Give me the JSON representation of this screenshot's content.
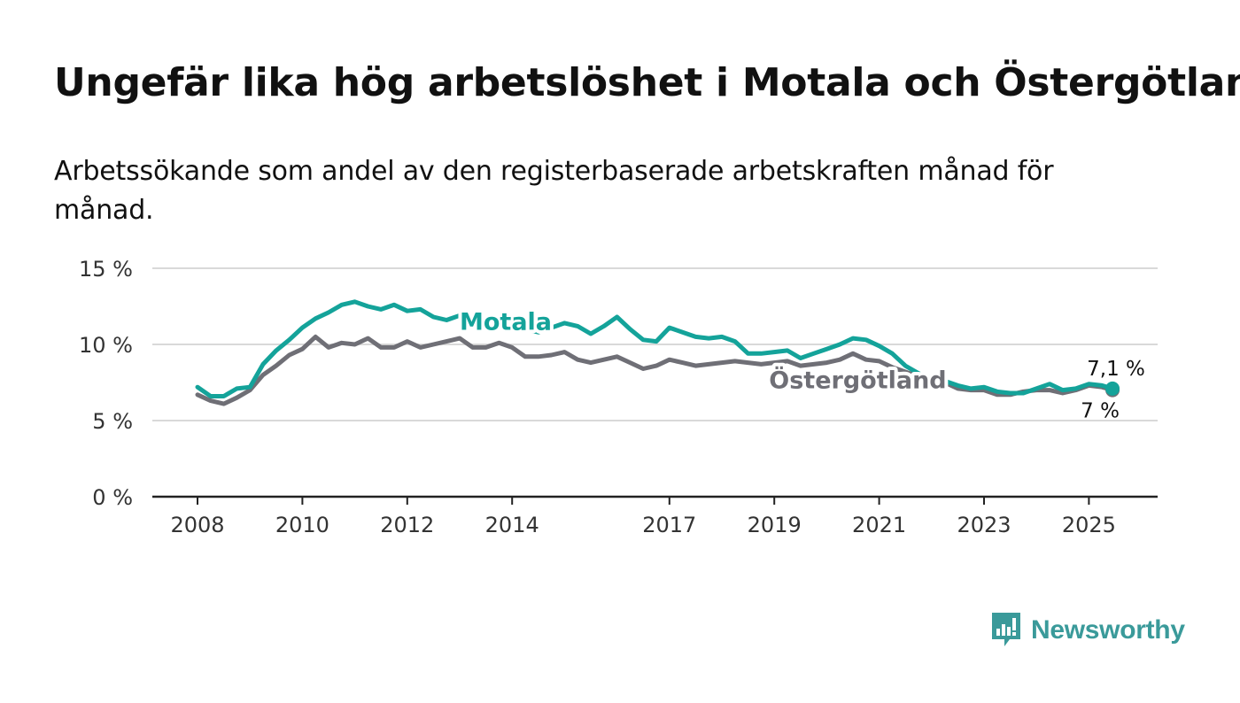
{
  "header": {
    "title": "Ungefär lika hög arbetslöshet i Motala och Östergötland",
    "subtitle": "Arbetssökande som andel av den registerbaserade arbetskraften månad för månad."
  },
  "brand": {
    "name": "Newsworthy",
    "icon": "newsworthy-logo-icon",
    "color": "#3a9a9a"
  },
  "chart_data": {
    "type": "line",
    "title": "Ungefär lika hög arbetslöshet i Motala och Östergötland",
    "subtitle": "Arbetssökande som andel av den registerbaserade arbetskraften månad för månad.",
    "xlabel": "",
    "ylabel": "",
    "xlim": [
      2008,
      2026.3
    ],
    "ylim": [
      0,
      15
    ],
    "x_ticks": [
      2008,
      2010,
      2012,
      2014,
      2017,
      2019,
      2021,
      2023,
      2025
    ],
    "x_tick_labels": [
      "2008",
      "2010",
      "2012",
      "2014",
      "2017",
      "2019",
      "2021",
      "2023",
      "2025"
    ],
    "y_ticks": [
      0,
      5,
      10,
      15
    ],
    "y_tick_labels": [
      "0 %",
      "5 %",
      "10 %",
      "15 %"
    ],
    "grid": "horizontal",
    "legend": "inline labels",
    "series": [
      {
        "name": "Motala",
        "color": "#14a39a",
        "end_label": "7,1 %",
        "points": [
          [
            2008.0,
            7.2
          ],
          [
            2008.25,
            6.6
          ],
          [
            2008.5,
            6.6
          ],
          [
            2008.75,
            7.1
          ],
          [
            2009.0,
            7.2
          ],
          [
            2009.25,
            8.7
          ],
          [
            2009.5,
            9.6
          ],
          [
            2009.75,
            10.3
          ],
          [
            2010.0,
            11.1
          ],
          [
            2010.25,
            11.7
          ],
          [
            2010.5,
            12.1
          ],
          [
            2010.75,
            12.6
          ],
          [
            2011.0,
            12.8
          ],
          [
            2011.25,
            12.5
          ],
          [
            2011.5,
            12.3
          ],
          [
            2011.75,
            12.6
          ],
          [
            2012.0,
            12.2
          ],
          [
            2012.25,
            12.3
          ],
          [
            2012.5,
            11.8
          ],
          [
            2012.75,
            11.6
          ],
          [
            2013.0,
            11.9
          ],
          [
            2013.25,
            11.8
          ],
          [
            2013.5,
            11.5
          ],
          [
            2013.75,
            11.5
          ],
          [
            2014.0,
            11.2
          ],
          [
            2014.25,
            11.0
          ],
          [
            2014.5,
            10.8
          ],
          [
            2014.75,
            11.1
          ],
          [
            2015.0,
            11.4
          ],
          [
            2015.25,
            11.2
          ],
          [
            2015.5,
            10.7
          ],
          [
            2015.75,
            11.2
          ],
          [
            2016.0,
            11.8
          ],
          [
            2016.25,
            11.0
          ],
          [
            2016.5,
            10.3
          ],
          [
            2016.75,
            10.2
          ],
          [
            2017.0,
            11.1
          ],
          [
            2017.25,
            10.8
          ],
          [
            2017.5,
            10.5
          ],
          [
            2017.75,
            10.4
          ],
          [
            2018.0,
            10.5
          ],
          [
            2018.25,
            10.2
          ],
          [
            2018.5,
            9.4
          ],
          [
            2018.75,
            9.4
          ],
          [
            2019.0,
            9.5
          ],
          [
            2019.25,
            9.6
          ],
          [
            2019.5,
            9.1
          ],
          [
            2019.75,
            9.4
          ],
          [
            2020.0,
            9.7
          ],
          [
            2020.25,
            10.0
          ],
          [
            2020.5,
            10.4
          ],
          [
            2020.75,
            10.3
          ],
          [
            2021.0,
            9.9
          ],
          [
            2021.25,
            9.4
          ],
          [
            2021.5,
            8.6
          ],
          [
            2021.75,
            8.1
          ],
          [
            2022.0,
            7.8
          ],
          [
            2022.25,
            7.6
          ],
          [
            2022.5,
            7.3
          ],
          [
            2022.75,
            7.1
          ],
          [
            2023.0,
            7.2
          ],
          [
            2023.25,
            6.9
          ],
          [
            2023.5,
            6.8
          ],
          [
            2023.75,
            6.8
          ],
          [
            2024.0,
            7.1
          ],
          [
            2024.25,
            7.4
          ],
          [
            2024.5,
            7.0
          ],
          [
            2024.75,
            7.1
          ],
          [
            2025.0,
            7.4
          ],
          [
            2025.25,
            7.3
          ],
          [
            2025.45,
            7.1
          ]
        ]
      },
      {
        "name": "Östergötland",
        "color": "#6f6f76",
        "end_label": "7 %",
        "points": [
          [
            2008.0,
            6.7
          ],
          [
            2008.25,
            6.3
          ],
          [
            2008.5,
            6.1
          ],
          [
            2008.75,
            6.5
          ],
          [
            2009.0,
            7.0
          ],
          [
            2009.25,
            8.0
          ],
          [
            2009.5,
            8.6
          ],
          [
            2009.75,
            9.3
          ],
          [
            2010.0,
            9.7
          ],
          [
            2010.25,
            10.5
          ],
          [
            2010.5,
            9.8
          ],
          [
            2010.75,
            10.1
          ],
          [
            2011.0,
            10.0
          ],
          [
            2011.25,
            10.4
          ],
          [
            2011.5,
            9.8
          ],
          [
            2011.75,
            9.8
          ],
          [
            2012.0,
            10.2
          ],
          [
            2012.25,
            9.8
          ],
          [
            2012.5,
            10.0
          ],
          [
            2012.75,
            10.2
          ],
          [
            2013.0,
            10.4
          ],
          [
            2013.25,
            9.8
          ],
          [
            2013.5,
            9.8
          ],
          [
            2013.75,
            10.1
          ],
          [
            2014.0,
            9.8
          ],
          [
            2014.25,
            9.2
          ],
          [
            2014.5,
            9.2
          ],
          [
            2014.75,
            9.3
          ],
          [
            2015.0,
            9.5
          ],
          [
            2015.25,
            9.0
          ],
          [
            2015.5,
            8.8
          ],
          [
            2015.75,
            9.0
          ],
          [
            2016.0,
            9.2
          ],
          [
            2016.25,
            8.8
          ],
          [
            2016.5,
            8.4
          ],
          [
            2016.75,
            8.6
          ],
          [
            2017.0,
            9.0
          ],
          [
            2017.25,
            8.8
          ],
          [
            2017.5,
            8.6
          ],
          [
            2017.75,
            8.7
          ],
          [
            2018.0,
            8.8
          ],
          [
            2018.25,
            8.9
          ],
          [
            2018.5,
            8.8
          ],
          [
            2018.75,
            8.7
          ],
          [
            2019.0,
            8.8
          ],
          [
            2019.25,
            8.9
          ],
          [
            2019.5,
            8.6
          ],
          [
            2019.75,
            8.7
          ],
          [
            2020.0,
            8.8
          ],
          [
            2020.25,
            9.0
          ],
          [
            2020.5,
            9.4
          ],
          [
            2020.75,
            9.0
          ],
          [
            2021.0,
            8.9
          ],
          [
            2021.25,
            8.5
          ],
          [
            2021.5,
            8.2
          ],
          [
            2021.75,
            7.9
          ],
          [
            2022.0,
            7.7
          ],
          [
            2022.25,
            7.5
          ],
          [
            2022.5,
            7.1
          ],
          [
            2022.75,
            7.0
          ],
          [
            2023.0,
            7.0
          ],
          [
            2023.25,
            6.7
          ],
          [
            2023.5,
            6.7
          ],
          [
            2023.75,
            6.9
          ],
          [
            2024.0,
            7.0
          ],
          [
            2024.25,
            7.0
          ],
          [
            2024.5,
            6.8
          ],
          [
            2024.75,
            7.0
          ],
          [
            2025.0,
            7.3
          ],
          [
            2025.25,
            7.2
          ],
          [
            2025.45,
            7.0
          ]
        ]
      }
    ],
    "annotations": [
      {
        "series": "Motala",
        "text": "Motala"
      },
      {
        "series": "Östergötland",
        "text": "Östergötland"
      }
    ]
  }
}
